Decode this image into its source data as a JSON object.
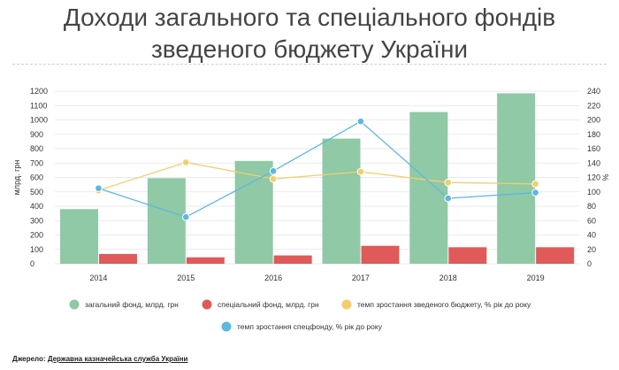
{
  "title_line1": "Доходи загального та спеціального фондів",
  "title_line2": "зведеного бюджету України",
  "source_label": "Джерело: ",
  "source_link": "Державна казначейська служба України",
  "colors": {
    "general": "#8fc9a6",
    "special": "#e05a5a",
    "budget_growth": "#f4cd6b",
    "special_growth": "#5cb8e0",
    "grid": "#e3e3e3",
    "axis_text": "#333333"
  },
  "chart_data": {
    "type": "bar",
    "categories": [
      "2014",
      "2015",
      "2016",
      "2017",
      "2018",
      "2019"
    ],
    "ylabel": "млрд. грн",
    "y2label": "%",
    "ylim": [
      0,
      1200
    ],
    "y2lim": [
      0,
      240
    ],
    "yticks": [
      0,
      100,
      200,
      300,
      400,
      500,
      600,
      700,
      800,
      900,
      1000,
      1100,
      1200
    ],
    "y2ticks": [
      0,
      20,
      40,
      60,
      80,
      100,
      120,
      140,
      160,
      180,
      200,
      220,
      240
    ],
    "grid": true,
    "legend_position": "bottom",
    "series": [
      {
        "name": "загальний фонд, млрд. грн",
        "kind": "bar",
        "axis": "left",
        "values": [
          380,
          595,
          715,
          870,
          1055,
          1185
        ]
      },
      {
        "name": "спеціальний фонд, млрд. грн",
        "kind": "bar",
        "axis": "left",
        "values": [
          68,
          45,
          58,
          125,
          115,
          115
        ]
      },
      {
        "name": "темп зростання зведеного бюджету, % рік до року",
        "kind": "line",
        "axis": "right",
        "values": [
          102,
          141,
          118,
          128,
          113,
          111
        ]
      },
      {
        "name": "темп зростання спецфонду, % рік до року",
        "kind": "line",
        "axis": "right",
        "values": [
          105,
          65,
          129,
          198,
          91,
          99
        ]
      }
    ]
  }
}
